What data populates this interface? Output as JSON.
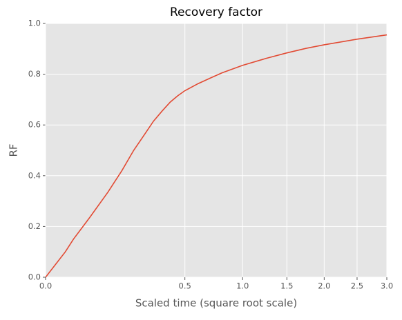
{
  "chart_data": {
    "type": "line",
    "title": "Recovery factor",
    "xlabel": "Scaled time (square root scale)",
    "ylabel": "RF",
    "xscale": "sqrt",
    "x": [
      0,
      0.01,
      0.02,
      0.05,
      0.1,
      0.15,
      0.2,
      0.25,
      0.3,
      0.35,
      0.4,
      0.45,
      0.5,
      0.6,
      0.7,
      0.8,
      1.0,
      1.25,
      1.5,
      1.75,
      2.0,
      2.5,
      3.0
    ],
    "values": [
      0,
      0.1,
      0.15,
      0.235,
      0.335,
      0.42,
      0.5,
      0.56,
      0.615,
      0.655,
      0.69,
      0.715,
      0.735,
      0.763,
      0.785,
      0.805,
      0.835,
      0.862,
      0.884,
      0.902,
      0.916,
      0.938,
      0.955
    ],
    "color": "#e24a33",
    "xlim": [
      0,
      3
    ],
    "xticks": [
      {
        "value": 0,
        "label": "0.0"
      },
      0.5,
      {
        "value": 1,
        "label": "1.0"
      },
      1.5,
      {
        "value": 2,
        "label": "2.0"
      },
      2.5,
      {
        "value": 3,
        "label": "3.0"
      }
    ],
    "ylim": [
      0,
      1
    ],
    "yticks": [
      {
        "value": 0,
        "label": "0.0"
      },
      0.2,
      0.4,
      0.6,
      0.8,
      {
        "value": 1,
        "label": "1.0"
      }
    ],
    "grid": true
  }
}
